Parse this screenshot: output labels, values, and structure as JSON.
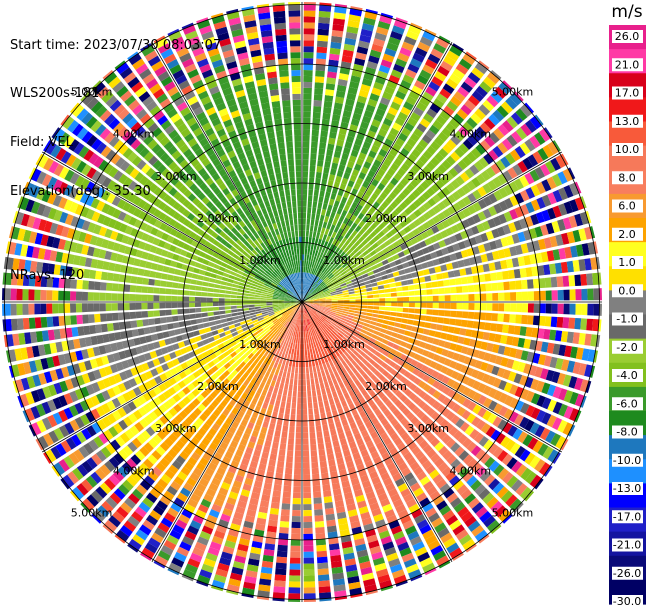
{
  "header": {
    "start_time": "Start time: 2023/07/30 08:03:07",
    "instrument": "WLS200s-181",
    "field": "Field: VEL",
    "elevation": "Elevation(deg): 35.30",
    "nrays": "NRays: 120"
  },
  "colorbar": {
    "unit": "m/s",
    "ticks": [
      "26.0",
      "21.0",
      "17.0",
      "13.0",
      "10.0",
      "8.0",
      "6.0",
      "2.0",
      "1.0",
      "0.0",
      "-1.0",
      "-2.0",
      "-4.0",
      "-6.0",
      "-8.0",
      "-10.0",
      "-13.0",
      "-17.0",
      "-21.0",
      "-26.0",
      "-30.0"
    ],
    "colors": [
      "#e8208c",
      "#ff3aa5",
      "#d8001a",
      "#f0181a",
      "#f85a3a",
      "#f6795a",
      "#f87e5e",
      "#f89a30",
      "#fda300",
      "#ffff20",
      "#ffe000",
      "#808080",
      "#696969",
      "#9acd32",
      "#82c01e",
      "#3a9a2a",
      "#1e8a1e",
      "#1e78be",
      "#1e90ff",
      "#0000ff",
      "#2020c8",
      "#1414a0",
      "#0a0a78",
      "#000064"
    ]
  },
  "chart_data": {
    "type": "heatmap",
    "title": "",
    "projection": "polar PPI",
    "field": "VEL",
    "units": "m/s",
    "nrays": 120,
    "elevation_deg": 35.3,
    "range_rings_km": [
      1.0,
      2.0,
      3.0,
      4.0,
      5.0
    ],
    "ring_labels": [
      "1.00km",
      "2.00km",
      "3.00km",
      "4.00km",
      "5.00km"
    ],
    "color_scale_ticks": [
      26.0,
      21.0,
      17.0,
      13.0,
      10.0,
      8.0,
      6.0,
      2.0,
      1.0,
      0.0,
      -1.0,
      -2.0,
      -4.0,
      -6.0,
      -8.0,
      -10.0,
      -13.0,
      -17.0,
      -21.0,
      -26.0,
      -30.0
    ],
    "pattern": {
      "near_field_velocity_by_azimuth": [
        {
          "azimuth_deg": 0,
          "velocity": -7
        },
        {
          "azimuth_deg": 45,
          "velocity": -5
        },
        {
          "azimuth_deg": 90,
          "velocity": 2
        },
        {
          "azimuth_deg": 135,
          "velocity": 8
        },
        {
          "azimuth_deg": 180,
          "velocity": 9
        },
        {
          "azimuth_deg": 225,
          "velocity": 2
        },
        {
          "azimuth_deg": 270,
          "velocity": -2
        },
        {
          "azimuth_deg": 315,
          "velocity": -6
        }
      ],
      "valid_range_km": 4.2,
      "outer_region": "noise"
    }
  }
}
